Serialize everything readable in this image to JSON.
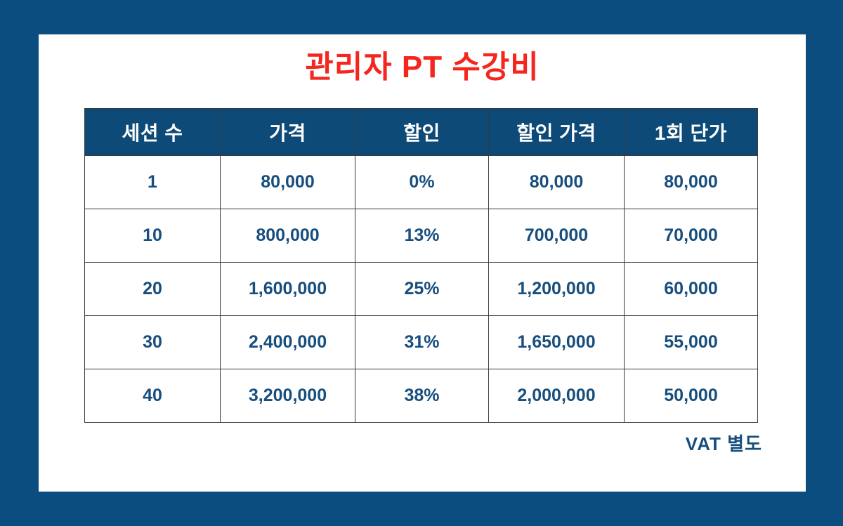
{
  "page": {
    "title": "관리자 PT 수강비",
    "footnote": "VAT 별도"
  },
  "table": {
    "headers": [
      "세션 수",
      "가격",
      "할인",
      "할인 가격",
      "1회 단가"
    ],
    "rows": [
      [
        "1",
        "80,000",
        "0%",
        "80,000",
        "80,000"
      ],
      [
        "10",
        "800,000",
        "13%",
        "700,000",
        "70,000"
      ],
      [
        "20",
        "1,600,000",
        "25%",
        "1,200,000",
        "60,000"
      ],
      [
        "30",
        "2,400,000",
        "31%",
        "1,650,000",
        "55,000"
      ],
      [
        "40",
        "3,200,000",
        "38%",
        "2,000,000",
        "50,000"
      ]
    ]
  },
  "colors": {
    "frame_blue": "#0a4d7e",
    "header_blue": "#0e4a77",
    "title_red": "#f4261e",
    "text_navy": "#174e7e",
    "grid_line": "#3a3a3a"
  }
}
